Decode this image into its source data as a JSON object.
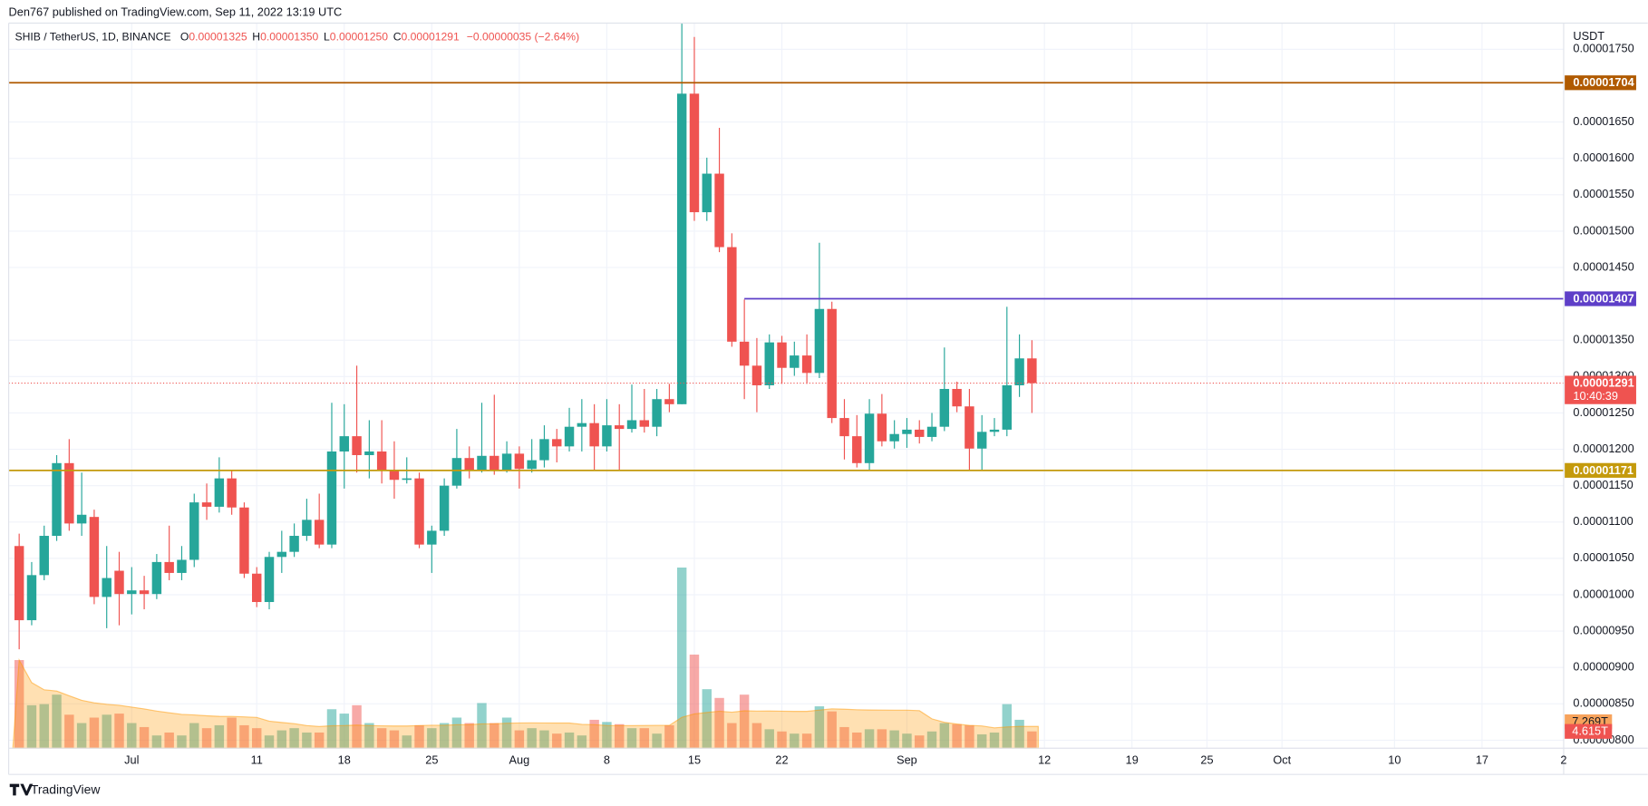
{
  "header": {
    "published": "Den767 published on TradingView.com, Sep 11, 2022 13:19 UTC",
    "symbol": "SHIB / TetherUS, 1D, BINANCE",
    "o_key": "O",
    "o_value": "0.00001325",
    "h_key": "H",
    "h_value": "0.00001350",
    "l_key": "L",
    "l_value": "0.00001250",
    "c_key": "C",
    "c_value": "0.00001291",
    "change": "−0.00000035 (−2.64%)"
  },
  "footer": {
    "brand": "TradingView"
  },
  "chart_data": {
    "type": "candlestick",
    "y_unit": "USDT",
    "categories": [
      null,
      null,
      null,
      null,
      null,
      null,
      null,
      null,
      null,
      "Jul",
      null,
      null,
      null,
      null,
      null,
      null,
      null,
      null,
      null,
      "11",
      null,
      null,
      null,
      null,
      null,
      null,
      "18",
      null,
      null,
      null,
      null,
      null,
      null,
      "25",
      null,
      null,
      null,
      null,
      null,
      null,
      "Aug",
      null,
      null,
      null,
      null,
      null,
      null,
      "8",
      null,
      null,
      null,
      null,
      null,
      null,
      "15",
      null,
      null,
      null,
      null,
      null,
      null,
      "22",
      null,
      null,
      null,
      null,
      null,
      null,
      null,
      null,
      null,
      "Sep",
      null,
      null,
      null,
      null,
      null,
      null,
      null,
      null,
      null,
      null
    ],
    "x_extra_labels": [
      "12",
      "19",
      "25",
      "Oct",
      "10",
      "17",
      "2"
    ],
    "open": [
      1.067e-05,
      9.65e-06,
      1.027e-05,
      1.081e-05,
      1.181e-05,
      1.098e-05,
      1.107e-05,
      9.97e-06,
      1.033e-05,
      1.001e-05,
      1.006e-05,
      1.001e-05,
      1.045e-05,
      1.03e-05,
      1.048e-05,
      1.127e-05,
      1.121e-05,
      1.16e-05,
      1.12e-05,
      1.029e-05,
      9.9e-06,
      1.052e-05,
      1.059e-05,
      1.081e-05,
      1.103e-05,
      1.069e-05,
      1.197e-05,
      1.218e-05,
      1.192e-05,
      1.197e-05,
      1.171e-05,
      1.158e-05,
      1.16e-05,
      1.069e-05,
      1.088e-05,
      1.15e-05,
      1.188e-05,
      1.172e-05,
      1.191e-05,
      1.171e-05,
      1.194e-05,
      1.173e-05,
      1.185e-05,
      1.214e-05,
      1.204e-05,
      1.231e-05,
      1.236e-05,
      1.204e-05,
      1.233e-05,
      1.228e-05,
      1.24e-05,
      1.231e-05,
      1.269e-05,
      1.262e-05,
      1.689e-05,
      1.526e-05,
      1.579e-05,
      1.478e-05,
      1.348e-05,
      1.315e-05,
      1.288e-05,
      1.347e-05,
      1.312e-05,
      1.329e-05,
      1.305e-05,
      1.393e-05,
      1.243e-05,
      1.218e-05,
      1.181e-05,
      1.249e-05,
      1.211e-05,
      1.221e-05,
      1.227e-05,
      1.217e-05,
      1.231e-05,
      1.283e-05,
      1.259e-05,
      1.201e-05,
      1.224e-05,
      1.227e-05,
      1.288e-05,
      1.325e-05
    ],
    "high": [
      1.084e-05,
      1.045e-05,
      1.095e-05,
      1.192e-05,
      1.214e-05,
      1.168e-05,
      1.117e-05,
      1.067e-05,
      1.059e-05,
      1.038e-05,
      1.026e-05,
      1.056e-05,
      1.095e-05,
      1.067e-05,
      1.139e-05,
      1.153e-05,
      1.189e-05,
      1.171e-05,
      1.127e-05,
      1.038e-05,
      1.059e-05,
      1.088e-05,
      1.098e-05,
      1.132e-05,
      1.139e-05,
      1.264e-05,
      1.262e-05,
      1.315e-05,
      1.24e-05,
      1.24e-05,
      1.211e-05,
      1.189e-05,
      1.168e-05,
      1.095e-05,
      1.16e-05,
      1.228e-05,
      1.204e-05,
      1.264e-05,
      1.275e-05,
      1.211e-05,
      1.204e-05,
      1.214e-05,
      1.233e-05,
      1.228e-05,
      1.257e-05,
      1.269e-05,
      1.262e-05,
      1.269e-05,
      1.262e-05,
      1.289e-05,
      1.283e-05,
      1.283e-05,
      1.29e-05,
      1.786e-05,
      1.767e-05,
      1.601e-05,
      1.642e-05,
      1.497e-05,
      1.406e-05,
      1.353e-05,
      1.358e-05,
      1.356e-05,
      1.348e-05,
      1.358e-05,
      1.484e-05,
      1.403e-05,
      1.269e-05,
      1.247e-05,
      1.269e-05,
      1.276e-05,
      1.24e-05,
      1.243e-05,
      1.24e-05,
      1.25e-05,
      1.34e-05,
      1.293e-05,
      1.283e-05,
      1.247e-05,
      1.243e-05,
      1.396e-05,
      1.358e-05,
      1.35e-05
    ],
    "low": [
      9.25e-06,
      9.58e-06,
      1.02e-05,
      1.074e-05,
      1.088e-05,
      1.081e-05,
      9.87e-06,
      9.54e-06,
      9.58e-06,
      9.73e-06,
      9.8e-06,
      9.94e-06,
      1.02e-05,
      1.02e-05,
      1.038e-05,
      1.103e-05,
      1.113e-05,
      1.11e-05,
      1.023e-05,
      9.83e-06,
      9.8e-06,
      1.03e-05,
      1.052e-05,
      1.074e-05,
      1.064e-05,
      1.064e-05,
      1.146e-05,
      1.168e-05,
      1.16e-05,
      1.153e-05,
      1.132e-05,
      1.153e-05,
      1.064e-05,
      1.03e-05,
      1.081e-05,
      1.146e-05,
      1.16e-05,
      1.168e-05,
      1.165e-05,
      1.168e-05,
      1.146e-05,
      1.168e-05,
      1.175e-05,
      1.182e-05,
      1.197e-05,
      1.197e-05,
      1.172e-05,
      1.197e-05,
      1.172e-05,
      1.223e-05,
      1.223e-05,
      1.218e-05,
      1.251e-05,
      1.262e-05,
      1.514e-05,
      1.514e-05,
      1.471e-05,
      1.341e-05,
      1.269e-05,
      1.251e-05,
      1.283e-05,
      1.29e-05,
      1.301e-05,
      1.29e-05,
      1.298e-05,
      1.236e-05,
      1.186e-05,
      1.175e-05,
      1.171e-05,
      1.204e-05,
      1.201e-05,
      1.202e-05,
      1.208e-05,
      1.211e-05,
      1.225e-05,
      1.251e-05,
      1.172e-05,
      1.172e-05,
      1.218e-05,
      1.218e-05,
      1.272e-05,
      1.25e-05
    ],
    "close": [
      9.65e-06,
      1.027e-05,
      1.081e-05,
      1.181e-05,
      1.098e-05,
      1.11e-05,
      9.97e-06,
      1.023e-05,
      1.001e-05,
      1.006e-05,
      1.001e-05,
      1.045e-05,
      1.03e-05,
      1.048e-05,
      1.127e-05,
      1.121e-05,
      1.16e-05,
      1.12e-05,
      1.029e-05,
      9.9e-06,
      1.052e-05,
      1.059e-05,
      1.081e-05,
      1.103e-05,
      1.069e-05,
      1.197e-05,
      1.218e-05,
      1.192e-05,
      1.197e-05,
      1.171e-05,
      1.158e-05,
      1.16e-05,
      1.069e-05,
      1.088e-05,
      1.15e-05,
      1.188e-05,
      1.172e-05,
      1.191e-05,
      1.171e-05,
      1.194e-05,
      1.173e-05,
      1.185e-05,
      1.214e-05,
      1.204e-05,
      1.231e-05,
      1.236e-05,
      1.204e-05,
      1.233e-05,
      1.228e-05,
      1.24e-05,
      1.231e-05,
      1.269e-05,
      1.262e-05,
      1.689e-05,
      1.526e-05,
      1.579e-05,
      1.478e-05,
      1.348e-05,
      1.315e-05,
      1.288e-05,
      1.347e-05,
      1.312e-05,
      1.329e-05,
      1.305e-05,
      1.393e-05,
      1.243e-05,
      1.218e-05,
      1.181e-05,
      1.249e-05,
      1.211e-05,
      1.221e-05,
      1.227e-05,
      1.217e-05,
      1.231e-05,
      1.283e-05,
      1.259e-05,
      1.201e-05,
      1.224e-05,
      1.227e-05,
      1.288e-05,
      1.325e-05,
      1.291e-05
    ],
    "up_color": "#26a69a",
    "down_color": "#ef5350",
    "volume": {
      "values": [
        24.2,
        11.8,
        12.1,
        14.7,
        9.2,
        6.9,
        8.4,
        9.2,
        9.5,
        6.9,
        5.8,
        3.5,
        4.3,
        3.5,
        6.9,
        5.5,
        6.3,
        8.4,
        6.3,
        5.5,
        3.5,
        4.9,
        5.5,
        4.3,
        4.3,
        10.7,
        9.5,
        11.8,
        6.9,
        5.5,
        4.9,
        3.5,
        6.3,
        5.5,
        6.9,
        8.4,
        6.9,
        12.4,
        6.9,
        8.4,
        4.9,
        5.5,
        4.9,
        4.0,
        4.3,
        3.5,
        7.8,
        7.2,
        6.6,
        5.5,
        5.5,
        4.0,
        6.3,
        49.6,
        25.7,
        16.2,
        13.8,
        6.9,
        14.7,
        6.9,
        5.2,
        4.6,
        4.0,
        4.0,
        11.5,
        10.1,
        5.8,
        4.3,
        5.2,
        5.2,
        4.9,
        4.0,
        3.5,
        4.6,
        6.9,
        6.6,
        6.3,
        3.8,
        4.3,
        12.1,
        7.8,
        4.615
      ],
      "last_label": "4.615T",
      "ma": {
        "value": 7.269,
        "label": "7.269T"
      },
      "ma_color": "#ff9800"
    },
    "ylim": [
      7.89e-06,
      1.786e-05
    ],
    "yticks": [
      {
        "value": 8e-06,
        "label": "0.00000800"
      },
      {
        "value": 8.5e-06,
        "label": "0.00000850"
      },
      {
        "value": 9e-06,
        "label": "0.00000900"
      },
      {
        "value": 9.5e-06,
        "label": "0.00000950"
      },
      {
        "value": 1e-05,
        "label": "0.00001000"
      },
      {
        "value": 1.05e-05,
        "label": "0.00001050"
      },
      {
        "value": 1.1e-05,
        "label": "0.00001100"
      },
      {
        "value": 1.15e-05,
        "label": "0.00001150"
      },
      {
        "value": 1.2e-05,
        "label": "0.00001200"
      },
      {
        "value": 1.25e-05,
        "label": "0.00001250"
      },
      {
        "value": 1.3e-05,
        "label": "0.00001300"
      },
      {
        "value": 1.35e-05,
        "label": "0.00001350"
      },
      {
        "value": 1.45e-05,
        "label": "0.00001450"
      },
      {
        "value": 1.5e-05,
        "label": "0.00001500"
      },
      {
        "value": 1.55e-05,
        "label": "0.00001550"
      },
      {
        "value": 1.6e-05,
        "label": "0.00001600"
      },
      {
        "value": 1.65e-05,
        "label": "0.00001650"
      },
      {
        "value": 1.75e-05,
        "label": "0.00001750"
      }
    ],
    "grid": true,
    "hlines": [
      {
        "value": 1.704e-05,
        "label": "0.00001704",
        "color": "#b05a00"
      },
      {
        "value": 1.407e-05,
        "label": "0.00001407",
        "color": "#5e3fc8"
      },
      {
        "value": 1.171e-05,
        "label": "0.00001171",
        "color": "#c49a0c"
      }
    ],
    "last_price": {
      "value": 1.291e-05,
      "label": "0.00001291",
      "countdown": "10:40:39",
      "color": "#ef5350"
    }
  }
}
